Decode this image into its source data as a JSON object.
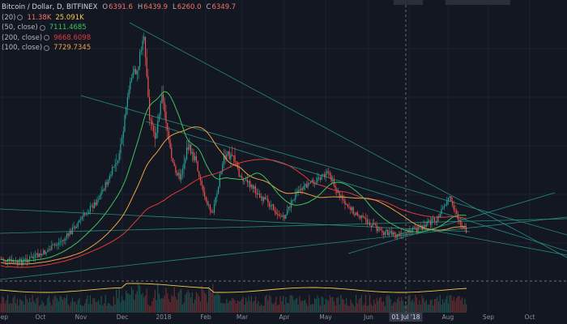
{
  "header": {
    "title": "Bitcoin / Dollar, D, BITFINEX",
    "ohlc": [
      {
        "key": "O",
        "value": "6391.6"
      },
      {
        "key": "H",
        "value": "6439.9"
      },
      {
        "key": "L",
        "value": "6260.0"
      },
      {
        "key": "C",
        "value": "6349.7"
      }
    ]
  },
  "indicators": [
    {
      "label": "(20)",
      "values": [
        {
          "text": "11.38K",
          "color": "#f0736a"
        },
        {
          "text": "25.091K",
          "color": "#f2c94c"
        }
      ]
    },
    {
      "label": "(50, close)",
      "values": [
        {
          "text": "7111.4685",
          "color": "#3ec25e"
        }
      ]
    },
    {
      "label": "(200, close)",
      "values": [
        {
          "text": "9668.6098",
          "color": "#e03a3a"
        }
      ]
    },
    {
      "label": "(100, close)",
      "values": [
        {
          "text": "7729.7345",
          "color": "#f0a040"
        }
      ]
    }
  ],
  "xaxis": {
    "labels": [
      "Sep",
      "Oct",
      "Nov",
      "Dec",
      "2018",
      "Feb",
      "Mar",
      "Apr",
      "May",
      "Jun",
      "Jul",
      "Aug",
      "Sep",
      "Oct"
    ],
    "crosshair_label": "01 Jul '18"
  },
  "colors": {
    "background": "#131722",
    "up": "#26a69a",
    "down": "#ef5350",
    "trendline": "#2a9d8f",
    "ma50": "#3ec25e",
    "ma100": "#f0a040",
    "ma200": "#e03a3a",
    "volume_ma": "#f2c94c"
  }
}
